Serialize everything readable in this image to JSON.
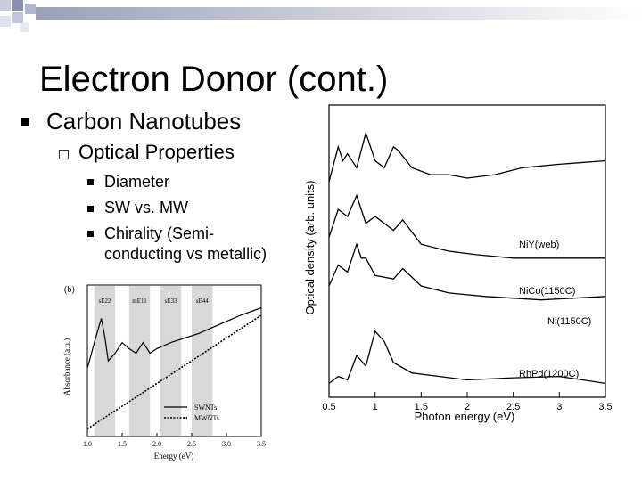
{
  "slide": {
    "title": "Electron Donor (cont.)",
    "bullet1": "Carbon Nanotubes",
    "bullet2": "Optical Properties",
    "sub_bullets": [
      "Diameter",
      "SW vs. MW",
      "Chirality (Semi-",
      "conducting vs metallic)"
    ]
  },
  "left_figure": {
    "panel_label": "(b)",
    "ylabel": "Absorbance (a.u.)",
    "xlabel": "Energy (eV)",
    "x_ticks": [
      "1.0",
      "1.5",
      "2.0",
      "2.5",
      "3.0",
      "3.5"
    ],
    "bands": [
      "sE22",
      "mE11",
      "sE33",
      "sE44"
    ],
    "legend": [
      "SWNTs",
      "MWNTs"
    ]
  },
  "right_figure": {
    "ylabel": "Optical density (arb. units)",
    "xlabel": "Photon energy (eV)",
    "x_ticks": [
      "0.5",
      "1",
      "1.5",
      "2",
      "2.5",
      "3",
      "3.5"
    ],
    "curve_labels": [
      "NiY(web)",
      "NiCo(1150C)",
      "Ni(1150C)",
      "RhPd(1200C)"
    ]
  },
  "chart_data": [
    {
      "type": "line",
      "title": "",
      "xlabel": "Energy (eV)",
      "ylabel": "Absorbance (a.u.)",
      "xlim": [
        1.0,
        3.5
      ],
      "series": [
        {
          "name": "SWNTs",
          "x": [
            1.0,
            1.1,
            1.2,
            1.25,
            1.3,
            1.4,
            1.5,
            1.6,
            1.7,
            1.8,
            1.9,
            2.0,
            2.1,
            2.2,
            2.4,
            2.6,
            2.8,
            3.0,
            3.2,
            3.5
          ],
          "y": [
            0.45,
            0.62,
            0.78,
            0.66,
            0.5,
            0.55,
            0.62,
            0.58,
            0.55,
            0.62,
            0.55,
            0.58,
            0.6,
            0.62,
            0.65,
            0.68,
            0.72,
            0.76,
            0.8,
            0.85
          ]
        },
        {
          "name": "MWNTs",
          "x": [
            1.0,
            1.5,
            2.0,
            2.5,
            3.0,
            3.5
          ],
          "y": [
            0.05,
            0.2,
            0.35,
            0.5,
            0.65,
            0.8
          ]
        }
      ]
    },
    {
      "type": "line",
      "title": "",
      "xlabel": "Photon energy (eV)",
      "ylabel": "Optical density (arb. units)",
      "xlim": [
        0.5,
        3.5
      ],
      "series": [
        {
          "name": "NiY(web)",
          "x": [
            0.5,
            0.6,
            0.65,
            0.7,
            0.8,
            0.9,
            1.0,
            1.1,
            1.2,
            1.25,
            1.4,
            1.6,
            1.8,
            2.0,
            2.3,
            2.6,
            3.0,
            3.5
          ],
          "y": [
            3.1,
            3.6,
            3.4,
            3.5,
            3.3,
            3.8,
            3.4,
            3.3,
            3.6,
            3.55,
            3.3,
            3.2,
            3.2,
            3.15,
            3.2,
            3.3,
            3.35,
            3.4
          ]
        },
        {
          "name": "NiCo(1150C)",
          "x": [
            0.5,
            0.6,
            0.7,
            0.8,
            0.9,
            1.0,
            1.2,
            1.3,
            1.5,
            1.8,
            2.1,
            2.5,
            3.0,
            3.5
          ],
          "y": [
            2.3,
            2.7,
            2.6,
            2.9,
            2.5,
            2.6,
            2.4,
            2.55,
            2.2,
            2.1,
            2.05,
            2.0,
            2.0,
            2.0
          ]
        },
        {
          "name": "Ni(1150C)",
          "x": [
            0.5,
            0.6,
            0.7,
            0.8,
            0.85,
            0.9,
            1.0,
            1.2,
            1.3,
            1.5,
            1.8,
            2.2,
            2.8,
            3.5
          ],
          "y": [
            1.6,
            1.9,
            1.8,
            2.2,
            2.0,
            2.0,
            1.75,
            1.7,
            1.85,
            1.6,
            1.5,
            1.45,
            1.4,
            1.45
          ]
        },
        {
          "name": "RhPd(1200C)",
          "x": [
            0.5,
            0.6,
            0.7,
            0.8,
            0.9,
            1.0,
            1.1,
            1.2,
            1.4,
            1.7,
            2.0,
            2.5,
            3.0,
            3.5
          ],
          "y": [
            0.2,
            0.3,
            0.25,
            0.6,
            0.45,
            0.95,
            0.8,
            0.5,
            0.35,
            0.3,
            0.25,
            0.28,
            0.3,
            0.2
          ]
        }
      ]
    }
  ]
}
